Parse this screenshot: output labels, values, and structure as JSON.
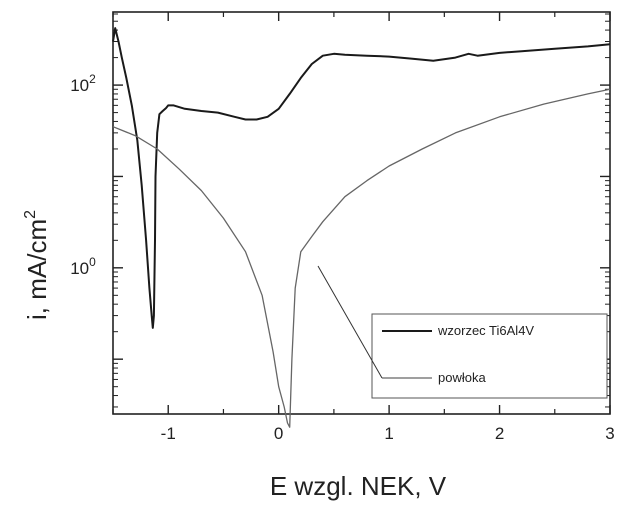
{
  "chart_data": {
    "type": "line",
    "xlabel": "E wzgl. NEK, V",
    "ylabel": "i, mA/cm",
    "ylabel_superscript": "2",
    "xlim": [
      -1.5,
      3
    ],
    "ylim_log10": [
      -1.6,
      2.8
    ],
    "x_ticks": [
      -1,
      0,
      1,
      2,
      3
    ],
    "x_tick_labels": [
      "-1",
      "0",
      "1",
      "2",
      "3"
    ],
    "y_ticks_log10": [
      0,
      2
    ],
    "y_tick_labels": [
      {
        "base": "10",
        "exp": "0"
      },
      {
        "base": "10",
        "exp": "2"
      }
    ],
    "grid": false,
    "legend_position": "bottom-right",
    "series": [
      {
        "name": "wzorzec Ti6Al4V",
        "color": "#1a1a1a",
        "x": [
          -1.5,
          -1.48,
          -1.45,
          -1.42,
          -1.38,
          -1.33,
          -1.28,
          -1.24,
          -1.2,
          -1.17,
          -1.15,
          -1.14,
          -1.13,
          -1.12,
          -1.115,
          -1.1,
          -1.08,
          -1.05,
          -1.02,
          -1.0,
          -0.95,
          -0.85,
          -0.7,
          -0.55,
          -0.4,
          -0.3,
          -0.2,
          -0.1,
          0.0,
          0.1,
          0.2,
          0.3,
          0.4,
          0.5,
          0.6,
          0.8,
          1.0,
          1.2,
          1.4,
          1.6,
          1.72,
          1.8,
          2.0,
          2.2,
          2.5,
          2.8,
          3.0
        ],
        "y": [
          300,
          420,
          300,
          200,
          120,
          60,
          25,
          8,
          2,
          0.6,
          0.3,
          0.22,
          0.3,
          2,
          10,
          30,
          48,
          52,
          56,
          60,
          60,
          55,
          52,
          50,
          45,
          42,
          42,
          45,
          55,
          80,
          120,
          170,
          210,
          220,
          215,
          210,
          205,
          195,
          185,
          200,
          220,
          210,
          225,
          235,
          250,
          265,
          280
        ]
      },
      {
        "name": "powłoka",
        "color": "#666666",
        "x": [
          -1.5,
          -1.3,
          -1.1,
          -0.9,
          -0.7,
          -0.5,
          -0.3,
          -0.15,
          -0.05,
          0.0,
          0.05,
          0.08,
          0.1,
          0.12,
          0.15,
          0.2,
          0.3,
          0.4,
          0.6,
          0.8,
          1.0,
          1.3,
          1.6,
          2.0,
          2.4,
          2.8,
          3.0
        ],
        "y": [
          35,
          28,
          20,
          12,
          7,
          3.5,
          1.5,
          0.5,
          0.12,
          0.05,
          0.03,
          0.02,
          0.018,
          0.1,
          0.6,
          1.5,
          2.2,
          3.2,
          6,
          9,
          13,
          20,
          30,
          45,
          62,
          80,
          90
        ]
      }
    ],
    "legend": [
      {
        "label": "wzorzec Ti6Al4V",
        "series": 0
      },
      {
        "label": "powłoka",
        "series": 1
      }
    ]
  }
}
